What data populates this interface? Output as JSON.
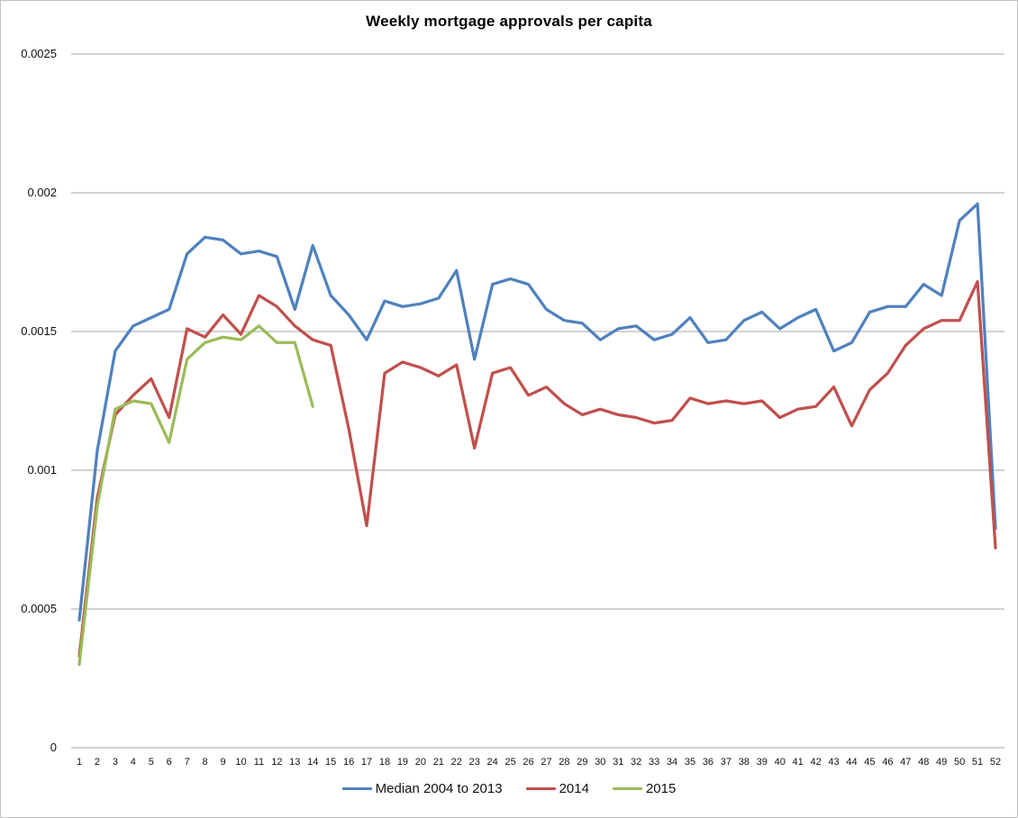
{
  "title": "Weekly mortgage approvals per capita",
  "chart_data": {
    "type": "line",
    "x": [
      1,
      2,
      3,
      4,
      5,
      6,
      7,
      8,
      9,
      10,
      11,
      12,
      13,
      14,
      15,
      16,
      17,
      18,
      19,
      20,
      21,
      22,
      23,
      24,
      25,
      26,
      27,
      28,
      29,
      30,
      31,
      32,
      33,
      34,
      35,
      36,
      37,
      38,
      39,
      40,
      41,
      42,
      43,
      44,
      45,
      46,
      47,
      48,
      49,
      50,
      51,
      52
    ],
    "series": [
      {
        "name": "Median 2004 to 2013",
        "color": "#4F81BD",
        "values": [
          0.00046,
          0.00107,
          0.00143,
          0.00152,
          0.00155,
          0.00158,
          0.00178,
          0.00184,
          0.00183,
          0.00178,
          0.00179,
          0.00177,
          0.00158,
          0.00181,
          0.00163,
          0.00156,
          0.00147,
          0.00161,
          0.00159,
          0.0016,
          0.00162,
          0.00172,
          0.0014,
          0.00167,
          0.00169,
          0.00167,
          0.00158,
          0.00154,
          0.00153,
          0.00147,
          0.00151,
          0.00152,
          0.00147,
          0.00149,
          0.00155,
          0.00146,
          0.00147,
          0.00154,
          0.00157,
          0.00151,
          0.00155,
          0.00158,
          0.00143,
          0.00146,
          0.00157,
          0.00159,
          0.00159,
          0.00167,
          0.00163,
          0.0019,
          0.00196,
          0.00079
        ]
      },
      {
        "name": "2014",
        "color": "#C0504D",
        "values": [
          0.00033,
          0.0009,
          0.0012,
          0.00127,
          0.00133,
          0.00119,
          0.00151,
          0.00148,
          0.00156,
          0.00149,
          0.00163,
          0.00159,
          0.00152,
          0.00147,
          0.00145,
          0.00115,
          0.0008,
          0.00135,
          0.00139,
          0.00137,
          0.00134,
          0.00138,
          0.00108,
          0.00135,
          0.00137,
          0.00127,
          0.0013,
          0.00124,
          0.0012,
          0.00122,
          0.0012,
          0.00119,
          0.00117,
          0.00118,
          0.00126,
          0.00124,
          0.00125,
          0.00124,
          0.00125,
          0.00119,
          0.00122,
          0.00123,
          0.0013,
          0.00116,
          0.00129,
          0.00135,
          0.00145,
          0.00151,
          0.00154,
          0.00154,
          0.00168,
          0.00072
        ]
      },
      {
        "name": "2015",
        "color": "#9BBB59",
        "values": [
          0.0003,
          0.00087,
          0.00122,
          0.00125,
          0.00124,
          0.0011,
          0.0014,
          0.00146,
          0.00148,
          0.00147,
          0.00152,
          0.00146,
          0.00146,
          0.00123
        ]
      }
    ],
    "ylim": [
      0,
      0.0025
    ],
    "ytick_step": 0.0005,
    "ytick_labels": [
      "0",
      "0.0005",
      "0.001",
      "0.0015",
      "0.002",
      "0.0025"
    ],
    "xlabel": "",
    "ylabel": "",
    "grid": true,
    "legend_position": "bottom",
    "gridline_color": "#a6a6a6"
  }
}
